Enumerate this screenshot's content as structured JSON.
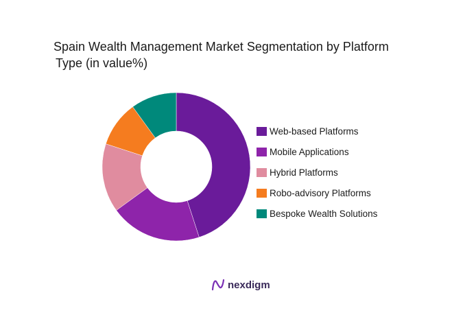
{
  "title_line1": "Spain Wealth Management Market Segmentation by Platform",
  "title_line2": "Type (in value%)",
  "brand": {
    "name": "nexdigm",
    "icon": "nexdigm-logo-icon",
    "color": "#7a2fb5"
  },
  "chart_data": {
    "type": "donut",
    "title": "Spain Wealth Management Market Segmentation by Platform Type (in value%)",
    "legend_position": "right",
    "series": [
      {
        "name": "Web-based Platforms",
        "value": 45,
        "color": "#6a1b9a"
      },
      {
        "name": "Mobile Applications",
        "value": 20,
        "color": "#8e24aa"
      },
      {
        "name": "Hybrid Platforms",
        "value": 15,
        "color": "#e08c9f"
      },
      {
        "name": "Robo-advisory Platforms",
        "value": 10,
        "color": "#f57c1f"
      },
      {
        "name": "Bespoke Wealth Solutions",
        "value": 10,
        "color": "#00897b"
      }
    ]
  }
}
